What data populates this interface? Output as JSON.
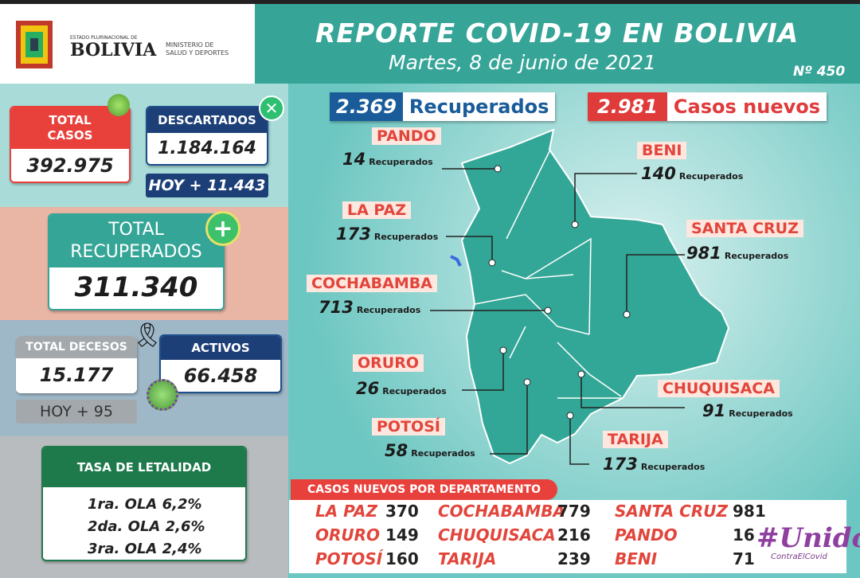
{
  "header": {
    "logo_top": "ESTADO PLURINACIONAL DE",
    "logo": "BOLIVIA",
    "ministry": [
      "MINISTERIO DE",
      "SALUD Y DEPORTES"
    ],
    "title": "REPORTE COVID-19 EN BOLIVIA",
    "date": "Martes, 8 de junio de 2021",
    "number": "Nº 450"
  },
  "summary": {
    "total_casos": {
      "label": [
        "TOTAL",
        "CASOS"
      ],
      "value": "392.975"
    },
    "descartados": {
      "label": "DESCARTADOS",
      "value": "1.184.164",
      "today": "HOY + 11.443"
    },
    "recuperados": {
      "label": [
        "TOTAL",
        "RECUPERADOS"
      ],
      "value": "311.340"
    },
    "decesos": {
      "label": "TOTAL DECESOS",
      "value": "15.177",
      "today": "HOY + 95"
    },
    "activos": {
      "label": "ACTIVOS",
      "value": "66.458"
    },
    "letalidad": {
      "title": "TASA DE LETALIDAD",
      "rows": [
        "1ra. OLA 6,2%",
        "2da. OLA 2,6%",
        "3ra. OLA 2,4%"
      ]
    }
  },
  "map": {
    "recuperados": {
      "value": "2.369",
      "label": "Recuperados"
    },
    "casos_nuevos": {
      "value": "2.981",
      "label": "Casos nuevos"
    },
    "unit": "Recuperados",
    "departments": [
      {
        "name": "PANDO",
        "value": 14
      },
      {
        "name": "BENI",
        "value": 140
      },
      {
        "name": "LA PAZ",
        "value": 173
      },
      {
        "name": "SANTA CRUZ",
        "value": 981
      },
      {
        "name": "COCHABAMBA",
        "value": 713
      },
      {
        "name": "ORURO",
        "value": 26
      },
      {
        "name": "CHUQUISACA",
        "value": 91
      },
      {
        "name": "POTOSÍ",
        "value": 58
      },
      {
        "name": "TARIJA",
        "value": 173
      }
    ]
  },
  "table": {
    "title": "CASOS NUEVOS POR DEPARTAMENTO",
    "entries": [
      {
        "name": "LA PAZ",
        "value": 370
      },
      {
        "name": "COCHABAMBA",
        "value": 779
      },
      {
        "name": "SANTA CRUZ",
        "value": 981
      },
      {
        "name": "ORURO",
        "value": 149
      },
      {
        "name": "CHUQUISACA",
        "value": 216
      },
      {
        "name": "PANDO",
        "value": 16
      },
      {
        "name": "POTOSÍ",
        "value": 160
      },
      {
        "name": "TARIJA",
        "value": 239
      },
      {
        "name": "BENI",
        "value": 71
      }
    ]
  },
  "footer": {
    "hashtag": "#Unidos",
    "sub": "ContraElCovid"
  }
}
